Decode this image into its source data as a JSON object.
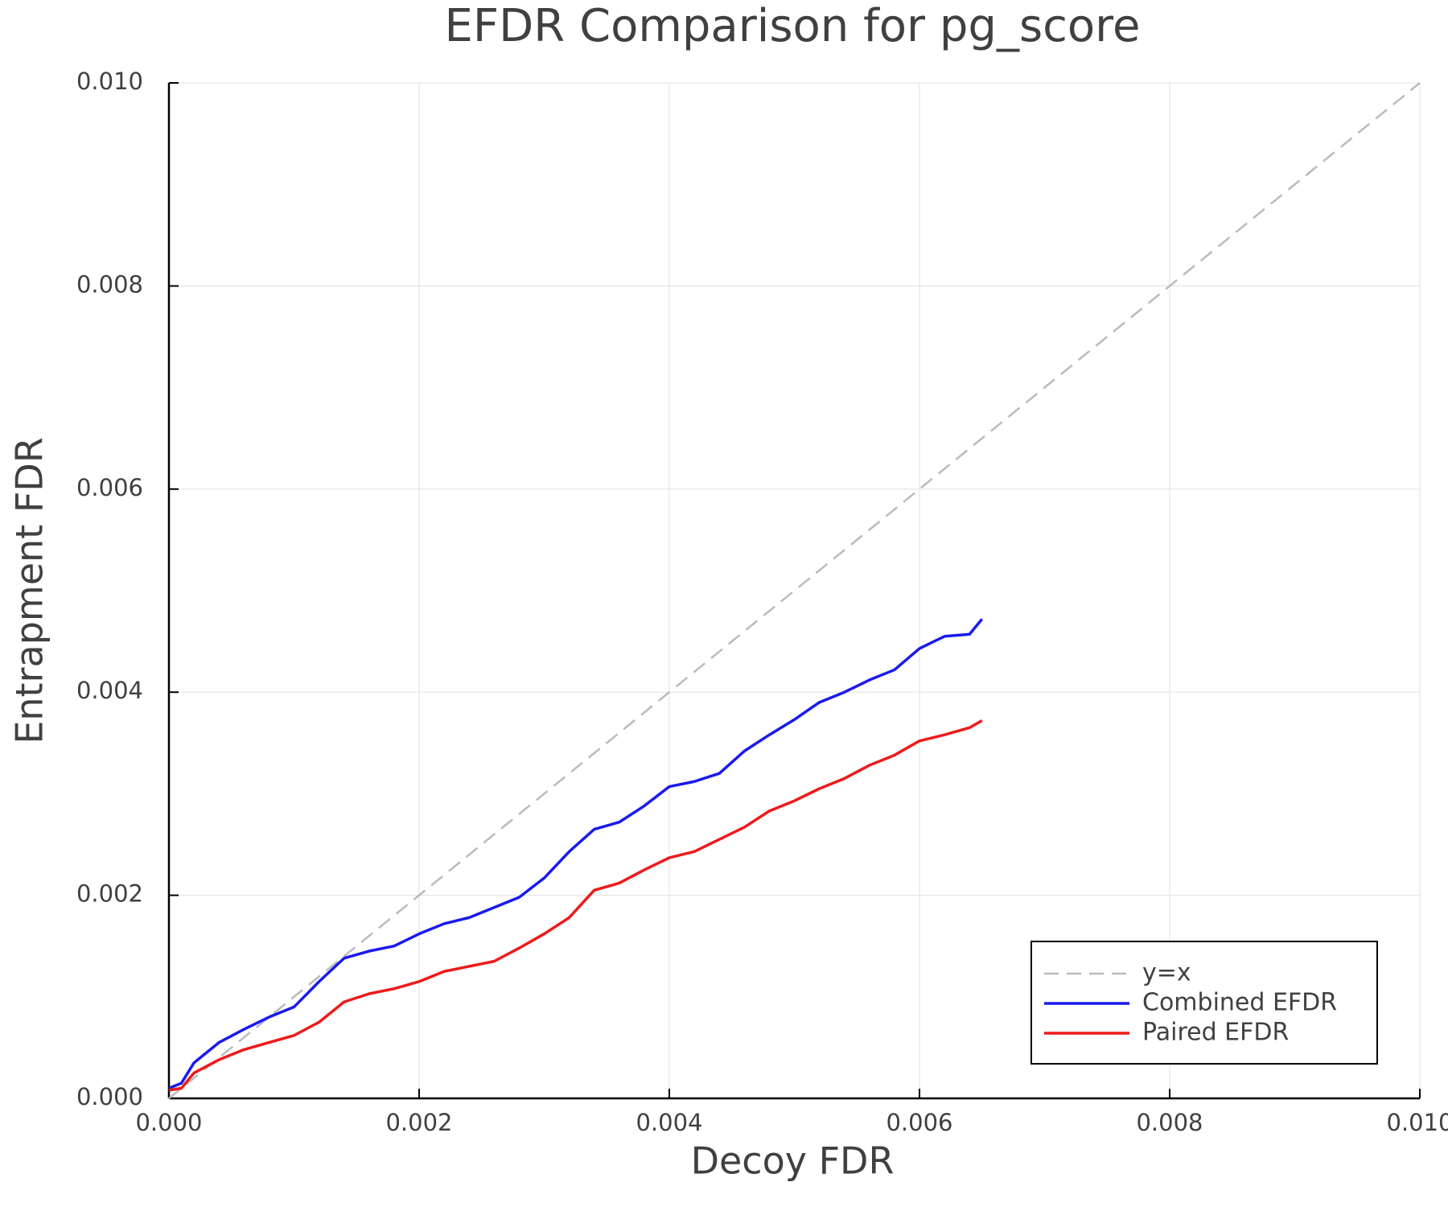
{
  "chart_data": {
    "type": "line",
    "title": "EFDR Comparison for pg_score",
    "xlabel": "Decoy FDR",
    "ylabel": "Entrapment FDR",
    "xlim": [
      0,
      0.01
    ],
    "ylim": [
      0,
      0.01
    ],
    "xticks": [
      {
        "value": 0,
        "label": "0.000"
      },
      {
        "value": 0.002,
        "label": "0.002"
      },
      {
        "value": 0.004,
        "label": "0.004"
      },
      {
        "value": 0.006,
        "label": "0.006"
      },
      {
        "value": 0.008,
        "label": "0.008"
      },
      {
        "value": 0.01,
        "label": "0.010"
      }
    ],
    "yticks": [
      {
        "value": 0,
        "label": "0.000"
      },
      {
        "value": 0.002,
        "label": "0.002"
      },
      {
        "value": 0.004,
        "label": "0.004"
      },
      {
        "value": 0.006,
        "label": "0.006"
      },
      {
        "value": 0.008,
        "label": "0.008"
      },
      {
        "value": 0.01,
        "label": "0.010"
      }
    ],
    "grid": true,
    "legend": "bottom right",
    "series": [
      {
        "name": "y=x",
        "color": "#bbbbbb",
        "linestyle": "dashed",
        "x": [
          0,
          0.01
        ],
        "values": [
          0,
          0.01
        ]
      },
      {
        "name": "Combined EFDR",
        "color": "#1a1aee",
        "linestyle": "solid",
        "x": [
          0,
          0.0001,
          0.0002,
          0.0004,
          0.0006,
          0.0008,
          0.001,
          0.0012,
          0.0014,
          0.0016,
          0.0018,
          0.002,
          0.0022,
          0.0024,
          0.0026,
          0.0028,
          0.003,
          0.0032,
          0.0034,
          0.0036,
          0.0038,
          0.004,
          0.0042,
          0.0044,
          0.0046,
          0.0048,
          0.005,
          0.0052,
          0.0054,
          0.0056,
          0.0058,
          0.006,
          0.0062,
          0.0064,
          0.0065
        ],
        "values": [
          0.0001,
          0.00015,
          0.00035,
          0.00055,
          0.00068,
          0.0008,
          0.0009,
          0.00115,
          0.00138,
          0.00145,
          0.0015,
          0.00162,
          0.00172,
          0.00178,
          0.00188,
          0.00198,
          0.00217,
          0.00243,
          0.00265,
          0.00272,
          0.00288,
          0.00307,
          0.00312,
          0.0032,
          0.00342,
          0.00358,
          0.00373,
          0.0039,
          0.004,
          0.00412,
          0.00422,
          0.00443,
          0.00455,
          0.00457,
          0.00472
        ]
      },
      {
        "name": "Paired EFDR",
        "color": "#ee1a1a",
        "linestyle": "solid",
        "x": [
          0,
          0.0001,
          0.0002,
          0.0004,
          0.0006,
          0.0008,
          0.001,
          0.0012,
          0.0014,
          0.0016,
          0.0018,
          0.002,
          0.0022,
          0.0024,
          0.0026,
          0.0028,
          0.003,
          0.0032,
          0.0034,
          0.0036,
          0.0038,
          0.004,
          0.0042,
          0.0044,
          0.0046,
          0.0048,
          0.005,
          0.0052,
          0.0054,
          0.0056,
          0.0058,
          0.006,
          0.0062,
          0.0064,
          0.0065
        ],
        "values": [
          8e-05,
          0.0001,
          0.00025,
          0.00038,
          0.00048,
          0.00055,
          0.00062,
          0.00075,
          0.00095,
          0.00103,
          0.00108,
          0.00115,
          0.00125,
          0.0013,
          0.00135,
          0.00148,
          0.00162,
          0.00178,
          0.00205,
          0.00212,
          0.00225,
          0.00237,
          0.00243,
          0.00255,
          0.00267,
          0.00283,
          0.00293,
          0.00305,
          0.00315,
          0.00328,
          0.00338,
          0.00352,
          0.00358,
          0.00365,
          0.00372
        ]
      }
    ]
  }
}
